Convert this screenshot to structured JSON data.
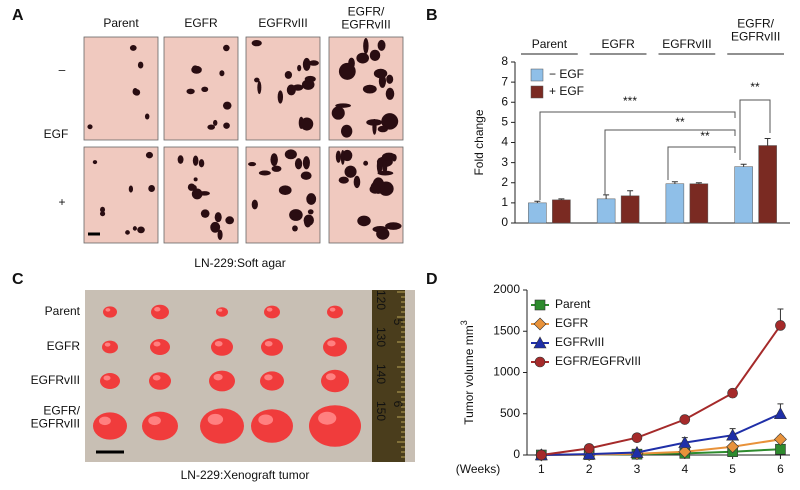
{
  "panels": {
    "A": {
      "label": "A",
      "columns": [
        "Parent",
        "EGFR",
        "EGFRvIII",
        "EGFR/\nEGFRvIII"
      ],
      "rows": [
        "–",
        "+"
      ],
      "row_title": "EGF",
      "caption": "LN-229:Soft agar"
    },
    "B": {
      "label": "B",
      "annotations": [
        "***",
        "**",
        "**",
        "**"
      ]
    },
    "C": {
      "label": "C",
      "rows": [
        "Parent",
        "EGFR",
        "EGFRvIII",
        "EGFR/\nEGFRvIII"
      ],
      "caption": "LN-229:Xenograft tumor",
      "ruler": [
        "120",
        "130",
        "140",
        "150",
        "5",
        "6"
      ]
    },
    "D": {
      "label": "D"
    }
  },
  "chart_data": [
    {
      "type": "bar",
      "ylabel": "Fold change",
      "categories": [
        "Parent",
        "EGFR",
        "EGFRvIII",
        "EGFR/\nEGFRvIII"
      ],
      "series": [
        {
          "name": "−  EGF",
          "color": "#8fbfe8",
          "values": [
            1.0,
            1.2,
            1.95,
            2.8
          ],
          "errors": [
            0.08,
            0.2,
            0.1,
            0.12
          ]
        },
        {
          "name": "+  EGF",
          "color": "#7a2a22",
          "values": [
            1.15,
            1.35,
            1.95,
            3.85
          ],
          "errors": [
            0.05,
            0.25,
            0.05,
            0.35
          ]
        }
      ],
      "ylim": [
        0,
        8
      ],
      "yticks": [
        0,
        1,
        2,
        3,
        4,
        5,
        6,
        7,
        8
      ],
      "legend": "upper left"
    },
    {
      "type": "line",
      "ylabel": "Tumor volume mm",
      "ylabel_sup": "3",
      "xlabel": "(Weeks)",
      "x": [
        1,
        2,
        3,
        4,
        5,
        6
      ],
      "series": [
        {
          "name": "Parent",
          "color": "#2e8b2e",
          "marker": "square",
          "values": [
            0,
            5,
            10,
            20,
            40,
            70
          ],
          "errors": [
            0,
            3,
            5,
            8,
            12,
            20
          ]
        },
        {
          "name": "EGFR",
          "color": "#e8923a",
          "marker": "diamond",
          "values": [
            0,
            5,
            15,
            40,
            100,
            190
          ],
          "errors": [
            0,
            3,
            6,
            15,
            30,
            40
          ]
        },
        {
          "name": "EGFRvIII",
          "color": "#1f2fa8",
          "marker": "triangle",
          "values": [
            0,
            10,
            30,
            150,
            240,
            500
          ],
          "errors": [
            0,
            5,
            10,
            60,
            80,
            120
          ]
        },
        {
          "name": "EGFR/EGFRvIII",
          "color": "#a52a2a",
          "marker": "circle",
          "values": [
            0,
            80,
            210,
            430,
            750,
            1570
          ],
          "errors": [
            0,
            15,
            25,
            30,
            40,
            200
          ]
        }
      ],
      "xlim": [
        0.7,
        6.2
      ],
      "xticks": [
        1,
        2,
        3,
        4,
        5,
        6
      ],
      "ylim": [
        0,
        2000
      ],
      "yticks": [
        0,
        500,
        1000,
        1500,
        2000
      ],
      "legend": "upper left"
    }
  ]
}
